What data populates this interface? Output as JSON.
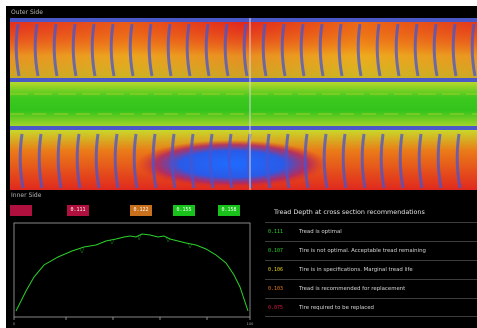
{
  "scan": {
    "outer_label": "Outer Side",
    "inner_label": "Inner Side"
  },
  "legend_badges": [
    {
      "label": "",
      "color": "#b0103e"
    },
    {
      "label": "0.111",
      "color": "#b0103e"
    },
    {
      "label": "0.122",
      "color": "#c8701c"
    },
    {
      "label": "0.155",
      "color": "#18c21a"
    },
    {
      "label": "0.158",
      "color": "#18c21a"
    }
  ],
  "profile": {
    "x_start": "0",
    "x_end": "100"
  },
  "recommendations": {
    "title": "Tread Depth at cross section recommendations",
    "rows": [
      {
        "value": "0.111",
        "text": "Tread is optimal",
        "color": "#27d227"
      },
      {
        "value": "0.107",
        "text": "Tire is not optimal. Acceptable tread remaining",
        "color": "#27d227"
      },
      {
        "value": "0.106",
        "text": "Tire is in specifications. Marginal tread life",
        "color": "#e8d21e"
      },
      {
        "value": "0.103",
        "text": "Tread is recommended for replacement",
        "color": "#e87a1e"
      },
      {
        "value": "0.075",
        "text": "Tire required to be replaced",
        "color": "#e0184a"
      }
    ]
  },
  "colors": {
    "optimal": "#18c21a",
    "marginal": "#e8d21e",
    "replace_soon": "#e87a1e",
    "replace": "#e0184a",
    "worn": "#2a62e6"
  }
}
